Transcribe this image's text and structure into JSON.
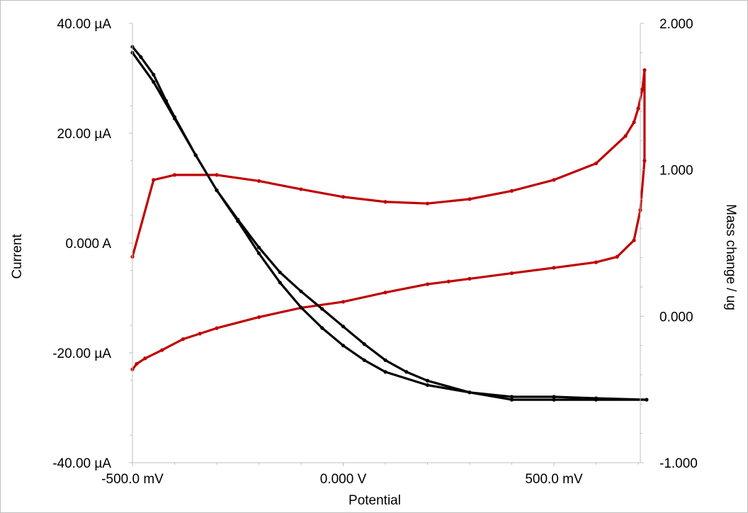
{
  "chart_data": {
    "type": "scatter",
    "xlabel": "Potential",
    "ylabel": "Current",
    "y2label": "Mass change / ug",
    "xlim": [
      -0.5,
      0.72
    ],
    "ylim": [
      -40,
      40
    ],
    "y2lim": [
      -1.0,
      2.0
    ],
    "x_ticks": [
      -0.5,
      0.0,
      0.5
    ],
    "x_tick_labels": [
      "-500.0 mV",
      "0.000 V",
      "500.0 mV"
    ],
    "y_ticks": [
      40,
      20,
      0,
      -20,
      -40
    ],
    "y_tick_labels": [
      "40.00 µA",
      "20.00 µA",
      "0.000 A",
      "-20.00 µA",
      "-40.00 µA"
    ],
    "y2_ticks": [
      2.0,
      1.0,
      0.0,
      -1.0
    ],
    "y2_tick_labels": [
      "2.000",
      "1.000",
      "0.000",
      "-1.000"
    ],
    "grid": false,
    "legend": "none",
    "series": [
      {
        "color": "#c00000",
        "axis": "left",
        "marker": "dot",
        "x": [
          -0.5,
          -0.49,
          -0.47,
          -0.43,
          -0.38,
          -0.34,
          -0.3,
          -0.2,
          -0.1,
          0.0,
          0.1,
          0.2,
          0.25,
          0.3,
          0.4,
          0.5,
          0.6,
          0.65,
          0.69,
          0.705,
          0.715,
          0.715,
          0.71,
          0.7,
          0.69,
          0.67,
          0.6,
          0.5,
          0.4,
          0.3,
          0.2,
          0.1,
          0.0,
          -0.1,
          -0.2,
          -0.3,
          -0.4,
          -0.45,
          -0.5
        ],
        "y": [
          -23.0,
          -22.0,
          -21.0,
          -19.5,
          -17.5,
          -16.5,
          -15.5,
          -13.5,
          -11.8,
          -10.7,
          -9.0,
          -7.5,
          -7.0,
          -6.5,
          -5.5,
          -4.5,
          -3.5,
          -2.5,
          0.5,
          6.0,
          15.0,
          31.5,
          28.0,
          24.5,
          22.0,
          19.5,
          14.5,
          11.5,
          9.5,
          8.0,
          7.2,
          7.5,
          8.4,
          9.8,
          11.3,
          12.4,
          12.4,
          11.5,
          -2.5
        ]
      },
      {
        "color": "#000000",
        "axis": "right",
        "marker": "dot",
        "x": [
          -0.5,
          -0.48,
          -0.45,
          -0.42,
          -0.4,
          -0.35,
          -0.3,
          -0.25,
          -0.2,
          -0.15,
          -0.1,
          -0.05,
          0.0,
          0.05,
          0.1,
          0.15,
          0.2,
          0.3,
          0.4,
          0.5,
          0.6,
          0.72,
          0.6,
          0.5,
          0.4,
          0.3,
          0.2,
          0.1,
          0.05,
          0.0,
          -0.05,
          -0.1,
          -0.15,
          -0.2,
          -0.25,
          -0.3,
          -0.35,
          -0.4,
          -0.45,
          -0.5
        ],
        "y": [
          1.84,
          1.77,
          1.65,
          1.47,
          1.36,
          1.1,
          0.86,
          0.66,
          0.47,
          0.3,
          0.17,
          0.05,
          -0.07,
          -0.19,
          -0.3,
          -0.38,
          -0.44,
          -0.52,
          -0.57,
          -0.57,
          -0.57,
          -0.57,
          -0.56,
          -0.55,
          -0.55,
          -0.52,
          -0.47,
          -0.38,
          -0.3,
          -0.2,
          -0.08,
          0.06,
          0.23,
          0.43,
          0.65,
          0.86,
          1.1,
          1.35,
          1.6,
          1.8
        ]
      }
    ]
  }
}
